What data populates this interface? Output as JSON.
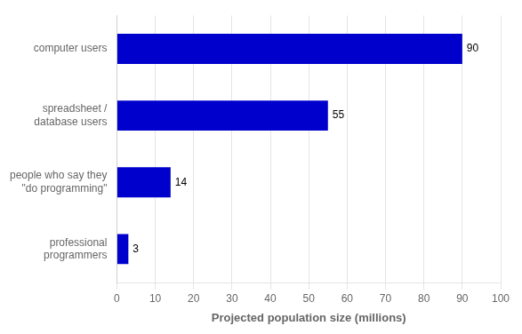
{
  "chart_data": {
    "type": "bar",
    "orientation": "horizontal",
    "categories": [
      "computer users",
      "spreadsheet /\ndatabase users",
      "people who say they\n\"do programming\"",
      "professional\nprogrammers"
    ],
    "values": [
      90,
      55,
      14,
      3
    ],
    "color": "#0000cc",
    "xlabel": "Projected population size (millions)",
    "xlim": [
      0,
      100
    ],
    "xticks": [
      0,
      10,
      20,
      30,
      40,
      50,
      60,
      70,
      80,
      90,
      100
    ],
    "grid": true,
    "data_labels": true
  }
}
